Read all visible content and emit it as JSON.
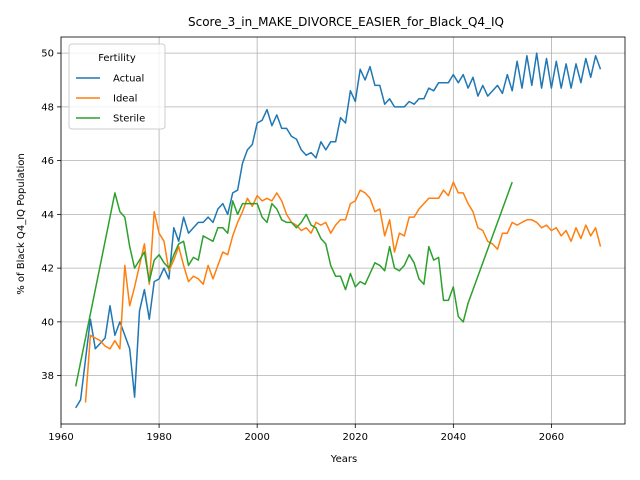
{
  "chart_data": {
    "type": "line",
    "title": "Score_3_in_MAKE_DIVORCE_EASIER_for_Black_Q4_IQ",
    "xlabel": "Years",
    "ylabel": "% of Black Q4_IQ Population",
    "xlim": [
      1960,
      2075
    ],
    "ylim": [
      36.2,
      50.6
    ],
    "xticks": [
      1960,
      1980,
      2000,
      2020,
      2040,
      2060
    ],
    "yticks": [
      38,
      40,
      42,
      44,
      46,
      48,
      50
    ],
    "grid": true,
    "legend": {
      "title": "Fertility",
      "placement": "top-left"
    },
    "series": [
      {
        "name": "Actual",
        "color": "#1f77b4",
        "x": [
          1963,
          1964,
          1965,
          1966,
          1967,
          1968,
          1969,
          1970,
          1971,
          1972,
          1973,
          1974,
          1975,
          1976,
          1977,
          1978,
          1979,
          1980,
          1981,
          1982,
          1983,
          1984,
          1985,
          1986,
          1987,
          1988,
          1989,
          1990,
          1991,
          1992,
          1993,
          1994,
          1995,
          1996,
          1997,
          1998,
          1999,
          2000,
          2001,
          2002,
          2003,
          2004,
          2005,
          2006,
          2007,
          2008,
          2009,
          2010,
          2011,
          2012,
          2013,
          2014,
          2015,
          2016,
          2017,
          2018,
          2019,
          2020,
          2021,
          2022,
          2023,
          2024,
          2025,
          2026,
          2027,
          2028,
          2029,
          2030,
          2031,
          2032,
          2033,
          2034,
          2035,
          2036,
          2037,
          2038,
          2039,
          2040,
          2041,
          2042,
          2043,
          2044,
          2045,
          2046,
          2047,
          2048,
          2049,
          2050,
          2051,
          2052,
          2053,
          2054,
          2055,
          2056,
          2057,
          2058,
          2059,
          2060,
          2061,
          2062,
          2063,
          2064,
          2065,
          2066,
          2067,
          2068,
          2069,
          2070
        ],
        "y": [
          36.8,
          37.1,
          38.6,
          40.1,
          39.0,
          39.2,
          39.4,
          40.6,
          39.5,
          40.0,
          39.5,
          39.0,
          37.2,
          40.4,
          41.2,
          40.1,
          41.5,
          41.6,
          42.0,
          41.6,
          43.5,
          43.0,
          43.9,
          43.3,
          43.5,
          43.7,
          43.7,
          43.9,
          43.7,
          44.2,
          44.4,
          44.0,
          44.8,
          44.9,
          45.9,
          46.4,
          46.6,
          47.4,
          47.5,
          47.9,
          47.3,
          47.7,
          47.2,
          47.2,
          46.9,
          46.8,
          46.4,
          46.2,
          46.3,
          46.1,
          46.7,
          46.4,
          46.7,
          46.7,
          47.6,
          47.4,
          48.6,
          48.2,
          49.4,
          49.0,
          49.5,
          48.8,
          48.8,
          48.1,
          48.3,
          48.0,
          48.0,
          48.0,
          48.2,
          48.1,
          48.3,
          48.3,
          48.7,
          48.6,
          48.9,
          48.9,
          48.9,
          49.2,
          48.9,
          49.2,
          48.7,
          49.1,
          48.4,
          48.8,
          48.4,
          48.6,
          48.8,
          48.5,
          49.2,
          48.6,
          49.7,
          48.7,
          49.9,
          48.8,
          50.0,
          48.7,
          49.8,
          48.7,
          49.7,
          48.7,
          49.6,
          48.7,
          49.6,
          48.9,
          49.8,
          49.1,
          49.9,
          49.4
        ]
      },
      {
        "name": "Ideal",
        "color": "#ff7f0e",
        "x": [
          1965,
          1966,
          1967,
          1968,
          1969,
          1970,
          1971,
          1972,
          1973,
          1974,
          1975,
          1976,
          1977,
          1978,
          1979,
          1980,
          1981,
          1982,
          1983,
          1984,
          1985,
          1986,
          1987,
          1988,
          1989,
          1990,
          1991,
          1992,
          1993,
          1994,
          1995,
          1996,
          1997,
          1998,
          1999,
          2000,
          2001,
          2002,
          2003,
          2004,
          2005,
          2006,
          2007,
          2008,
          2009,
          2010,
          2011,
          2012,
          2013,
          2014,
          2015,
          2016,
          2017,
          2018,
          2019,
          2020,
          2021,
          2022,
          2023,
          2024,
          2025,
          2026,
          2027,
          2028,
          2029,
          2030,
          2031,
          2032,
          2033,
          2034,
          2035,
          2036,
          2037,
          2038,
          2039,
          2040,
          2041,
          2042,
          2043,
          2044,
          2045,
          2046,
          2047,
          2048,
          2049,
          2050,
          2051,
          2052,
          2053,
          2054,
          2055,
          2056,
          2057,
          2058,
          2059,
          2060,
          2061,
          2062,
          2063,
          2064,
          2065,
          2066,
          2067,
          2068,
          2069,
          2070
        ],
        "y": [
          37.0,
          39.5,
          39.4,
          39.3,
          39.1,
          39.0,
          39.3,
          39.0,
          42.1,
          40.6,
          41.3,
          42.1,
          42.9,
          41.4,
          44.1,
          43.3,
          43.0,
          41.9,
          42.3,
          42.8,
          42.1,
          41.5,
          41.7,
          41.6,
          41.4,
          42.1,
          41.6,
          42.1,
          42.6,
          42.5,
          43.2,
          43.7,
          44.1,
          44.6,
          44.3,
          44.7,
          44.5,
          44.6,
          44.5,
          44.8,
          44.5,
          44.0,
          43.7,
          43.6,
          43.4,
          43.5,
          43.3,
          43.7,
          43.6,
          43.7,
          43.3,
          43.6,
          43.8,
          43.8,
          44.4,
          44.5,
          44.9,
          44.8,
          44.6,
          44.1,
          44.2,
          43.2,
          43.8,
          42.6,
          43.3,
          43.2,
          43.9,
          43.9,
          44.2,
          44.4,
          44.6,
          44.6,
          44.6,
          44.9,
          44.7,
          45.2,
          44.8,
          44.8,
          44.4,
          44.1,
          43.5,
          43.4,
          43.0,
          42.9,
          42.7,
          43.3,
          43.3,
          43.7,
          43.6,
          43.7,
          43.8,
          43.8,
          43.7,
          43.5,
          43.6,
          43.4,
          43.5,
          43.2,
          43.4,
          43.0,
          43.5,
          43.1,
          43.6,
          43.2,
          43.5,
          42.8
        ]
      },
      {
        "name": "Sterile",
        "color": "#2ca02c",
        "x": [
          1963,
          1971,
          1972,
          1973,
          1974,
          1975,
          1976,
          1977,
          1978,
          1979,
          1980,
          1981,
          1982,
          1983,
          1984,
          1985,
          1986,
          1987,
          1988,
          1989,
          1990,
          1991,
          1992,
          1993,
          1994,
          1995,
          1996,
          1997,
          1998,
          1999,
          2000,
          2001,
          2002,
          2003,
          2004,
          2005,
          2006,
          2007,
          2008,
          2009,
          2010,
          2011,
          2012,
          2013,
          2014,
          2015,
          2016,
          2017,
          2018,
          2019,
          2020,
          2021,
          2022,
          2023,
          2024,
          2025,
          2026,
          2027,
          2028,
          2029,
          2030,
          2031,
          2032,
          2033,
          2034,
          2035,
          2036,
          2037,
          2038,
          2039,
          2040,
          2041,
          2042,
          2043,
          2052
        ],
        "y": [
          37.6,
          44.8,
          44.1,
          43.9,
          42.8,
          42.0,
          42.3,
          42.6,
          41.5,
          42.3,
          42.5,
          42.2,
          42.0,
          42.5,
          42.9,
          43.0,
          42.1,
          42.4,
          42.3,
          43.2,
          43.1,
          43.0,
          43.5,
          43.5,
          43.3,
          44.5,
          44.0,
          44.4,
          44.4,
          44.4,
          44.4,
          43.9,
          43.7,
          44.4,
          44.2,
          43.8,
          43.7,
          43.7,
          43.5,
          43.7,
          44.0,
          43.6,
          43.5,
          43.1,
          42.9,
          42.1,
          41.7,
          41.7,
          41.2,
          41.8,
          41.3,
          41.5,
          41.4,
          41.8,
          42.2,
          42.1,
          41.9,
          42.8,
          42.0,
          41.9,
          42.1,
          42.5,
          42.2,
          41.6,
          41.4,
          42.8,
          42.3,
          42.4,
          40.8,
          40.8,
          41.3,
          40.2,
          40.0,
          40.7,
          45.2
        ]
      }
    ]
  }
}
